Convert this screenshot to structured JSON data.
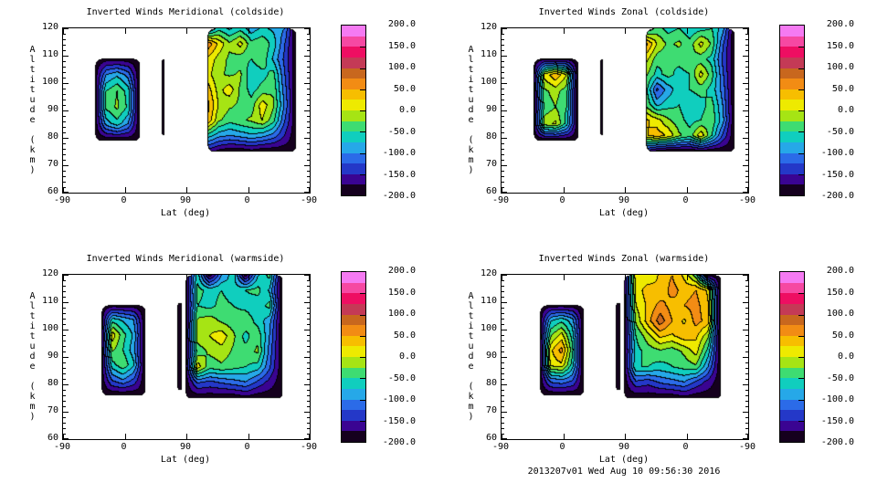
{
  "footer": "2013207v01 Wed Aug 10 09:56:30 2016",
  "chart_data": {
    "type": "heatmap",
    "subtype": "filled-contour",
    "xlabel": "Lat (deg)",
    "ylabel": "Altitude (km)",
    "x_tick_labels": [
      "-90",
      "0",
      "90",
      "0",
      "-90"
    ],
    "y_tick_labels": [
      "120",
      "110",
      "100",
      "90",
      "80",
      "70",
      "60"
    ],
    "y_range": [
      60,
      120
    ],
    "x_axis_note": "latitude along orbit: ascending -90 to 90, then descending back to -90",
    "grid": false,
    "colorbar": {
      "min": -200,
      "max": 200,
      "step": 25,
      "tick_labels": [
        "200.0",
        "150.0",
        "100.0",
        "50.0",
        "0.0",
        "-50.0",
        "-100.0",
        "-150.0",
        "-200.0"
      ],
      "colors": [
        "#15001E",
        "#3A0492",
        "#2438C8",
        "#2B6BE8",
        "#26A8E8",
        "#10CEBE",
        "#3EDC72",
        "#A6E414",
        "#EEEA00",
        "#F7BE00",
        "#F28C14",
        "#C8671E",
        "#C43A56",
        "#EE0E62",
        "#F648A2",
        "#F57AF2"
      ]
    },
    "panels": [
      {
        "title": "Inverted Winds Meridional (coldside)",
        "regions": [
          {
            "x0": 0.13,
            "x1": 0.31,
            "alt_top": 109,
            "alt_bot": 79,
            "corner": 7,
            "values": [
              [
                -190,
                -190,
                -190,
                -190,
                -190
              ],
              [
                -190,
                -100,
                -80,
                -110,
                -190
              ],
              [
                -190,
                -50,
                -25,
                -60,
                -190
              ],
              [
                -190,
                -45,
                -20,
                -55,
                -190
              ],
              [
                -190,
                -90,
                -60,
                -100,
                -190
              ],
              [
                -190,
                -190,
                -190,
                -190,
                -190
              ]
            ]
          },
          {
            "sliver": true,
            "x": 0.405,
            "alt_top": 109,
            "alt_bot": 81,
            "width": 3
          },
          {
            "x0": 0.585,
            "x1": 0.945,
            "alt_top": 120,
            "alt_bot": 75,
            "corner": 7,
            "values": [
              [
                -120,
                -60,
                -80,
                -60,
                -90,
                -70,
                -80,
                -100,
                -190
              ],
              [
                70,
                20,
                -20,
                10,
                -40,
                -30,
                -60,
                -120,
                -190
              ],
              [
                20,
                -10,
                -30,
                -40,
                -50,
                -30,
                -80,
                -130,
                -190
              ],
              [
                10,
                -20,
                -30,
                -20,
                -70,
                -60,
                -40,
                -120,
                -190
              ],
              [
                40,
                -10,
                15,
                -30,
                -60,
                -40,
                -30,
                -110,
                -190
              ],
              [
                60,
                0,
                -20,
                -30,
                -40,
                15,
                -20,
                -100,
                -190
              ],
              [
                50,
                -20,
                -40,
                -30,
                -20,
                0,
                -40,
                -120,
                -190
              ],
              [
                -60,
                -90,
                -100,
                -90,
                -80,
                -90,
                -110,
                -150,
                -190
              ],
              [
                -160,
                -180,
                -190,
                -190,
                -180,
                -190,
                -190,
                -190,
                -190
              ]
            ]
          }
        ]
      },
      {
        "title": "Inverted Winds Zonal (coldside)",
        "regions": [
          {
            "x0": 0.13,
            "x1": 0.31,
            "alt_top": 109,
            "alt_bot": 79,
            "corner": 7,
            "values": [
              [
                -190,
                -190,
                -190,
                -190,
                -190
              ],
              [
                -190,
                10,
                45,
                0,
                -190
              ],
              [
                -190,
                -30,
                -15,
                -40,
                -190
              ],
              [
                -190,
                -40,
                -25,
                -50,
                -190
              ],
              [
                -190,
                -10,
                5,
                -60,
                -190
              ],
              [
                -190,
                -190,
                -190,
                -190,
                -190
              ]
            ]
          },
          {
            "sliver": true,
            "x": 0.405,
            "alt_top": 109,
            "alt_bot": 81,
            "width": 3
          },
          {
            "x0": 0.585,
            "x1": 0.945,
            "alt_top": 120,
            "alt_bot": 75,
            "corner": 7,
            "values": [
              [
                -80,
                -40,
                -60,
                -50,
                -70,
                -60,
                -50,
                -90,
                -190
              ],
              [
                60,
                0,
                -30,
                -20,
                -40,
                10,
                -30,
                -120,
                -190
              ],
              [
                10,
                -40,
                -50,
                -40,
                -30,
                -40,
                -60,
                -130,
                -190
              ],
              [
                -20,
                -60,
                -40,
                -60,
                -50,
                10,
                -40,
                -120,
                -190
              ],
              [
                -40,
                -130,
                -90,
                -60,
                -50,
                -40,
                -60,
                -110,
                -190
              ],
              [
                -30,
                -80,
                -60,
                -50,
                -70,
                -60,
                -40,
                -100,
                -190
              ],
              [
                30,
                10,
                -20,
                -40,
                -60,
                -50,
                -30,
                -90,
                -190
              ],
              [
                20,
                40,
                20,
                -20,
                -40,
                20,
                -50,
                -130,
                -190
              ],
              [
                -150,
                -180,
                -190,
                -190,
                -190,
                -180,
                -190,
                -190,
                -190
              ]
            ]
          }
        ]
      },
      {
        "title": "Inverted Winds Meridional (warmside)",
        "regions": [
          {
            "x0": 0.155,
            "x1": 0.335,
            "alt_top": 109,
            "alt_bot": 76,
            "corner": 7,
            "values": [
              [
                -190,
                -190,
                -190,
                -190,
                -190
              ],
              [
                -190,
                -60,
                -80,
                -100,
                -190
              ],
              [
                -190,
                15,
                -40,
                -80,
                -190
              ],
              [
                -190,
                -20,
                -50,
                -90,
                -190
              ],
              [
                -190,
                -60,
                -30,
                -70,
                -190
              ],
              [
                -190,
                -120,
                -100,
                -130,
                -190
              ],
              [
                -190,
                -190,
                -190,
                -190,
                -190
              ]
            ]
          },
          {
            "sliver": true,
            "x": 0.472,
            "alt_top": 110,
            "alt_bot": 78,
            "width": 5
          },
          {
            "x0": 0.497,
            "x1": 0.89,
            "alt_top": 120,
            "alt_bot": 75,
            "corner": 6,
            "values": [
              [
                -190,
                -60,
                -190,
                -100,
                -60,
                -190,
                -80,
                -40,
                -190
              ],
              [
                -190,
                -40,
                -60,
                -50,
                -70,
                -50,
                -40,
                -80,
                -190
              ],
              [
                -190,
                -50,
                -60,
                -40,
                -50,
                -60,
                -70,
                -40,
                -190
              ],
              [
                -190,
                -20,
                -10,
                -30,
                -40,
                -30,
                -60,
                -90,
                -190
              ],
              [
                -190,
                -10,
                0,
                15,
                -20,
                -60,
                -30,
                -100,
                -190
              ],
              [
                -190,
                -40,
                -20,
                -10,
                -30,
                -40,
                -20,
                -110,
                -190
              ],
              [
                -190,
                15,
                -40,
                -30,
                -40,
                -50,
                -60,
                -120,
                -190
              ],
              [
                -190,
                -120,
                -130,
                -120,
                -110,
                -100,
                -130,
                -160,
                -190
              ],
              [
                -190,
                -190,
                -190,
                -190,
                -190,
                -180,
                -190,
                -190,
                -190
              ]
            ]
          }
        ]
      },
      {
        "title": "Inverted Winds Zonal (warmside)",
        "regions": [
          {
            "x0": 0.155,
            "x1": 0.335,
            "alt_top": 109,
            "alt_bot": 76,
            "corner": 7,
            "values": [
              [
                -190,
                -190,
                -190,
                -190,
                -190
              ],
              [
                -190,
                -80,
                -60,
                -90,
                -190
              ],
              [
                -190,
                -30,
                10,
                -60,
                -190
              ],
              [
                -190,
                20,
                60,
                -40,
                -190
              ],
              [
                -190,
                10,
                20,
                -60,
                -190
              ],
              [
                -190,
                -110,
                -100,
                -120,
                -190
              ],
              [
                -190,
                -190,
                -190,
                -190,
                -190
              ]
            ]
          },
          {
            "sliver": true,
            "x": 0.472,
            "alt_top": 110,
            "alt_bot": 78,
            "width": 5
          },
          {
            "x0": 0.497,
            "x1": 0.89,
            "alt_top": 120,
            "alt_bot": 75,
            "corner": 6,
            "values": [
              [
                -190,
                20,
                0,
                30,
                50,
                20,
                -40,
                -190,
                -190
              ],
              [
                -190,
                10,
                40,
                30,
                60,
                40,
                50,
                20,
                -190
              ],
              [
                -190,
                0,
                30,
                60,
                40,
                50,
                60,
                30,
                -190
              ],
              [
                -190,
                -20,
                40,
                90,
                50,
                20,
                60,
                40,
                -190
              ],
              [
                -190,
                -50,
                -10,
                30,
                20,
                40,
                30,
                -20,
                -190
              ],
              [
                -190,
                -60,
                -40,
                -30,
                -40,
                -20,
                10,
                -60,
                -190
              ],
              [
                -190,
                -50,
                -50,
                -60,
                -50,
                -40,
                -30,
                -100,
                -190
              ],
              [
                -190,
                -130,
                -140,
                -120,
                -110,
                -100,
                -130,
                -160,
                -190
              ],
              [
                -190,
                -190,
                -190,
                -190,
                -190,
                -180,
                -190,
                -190,
                -190
              ]
            ]
          }
        ]
      }
    ]
  }
}
